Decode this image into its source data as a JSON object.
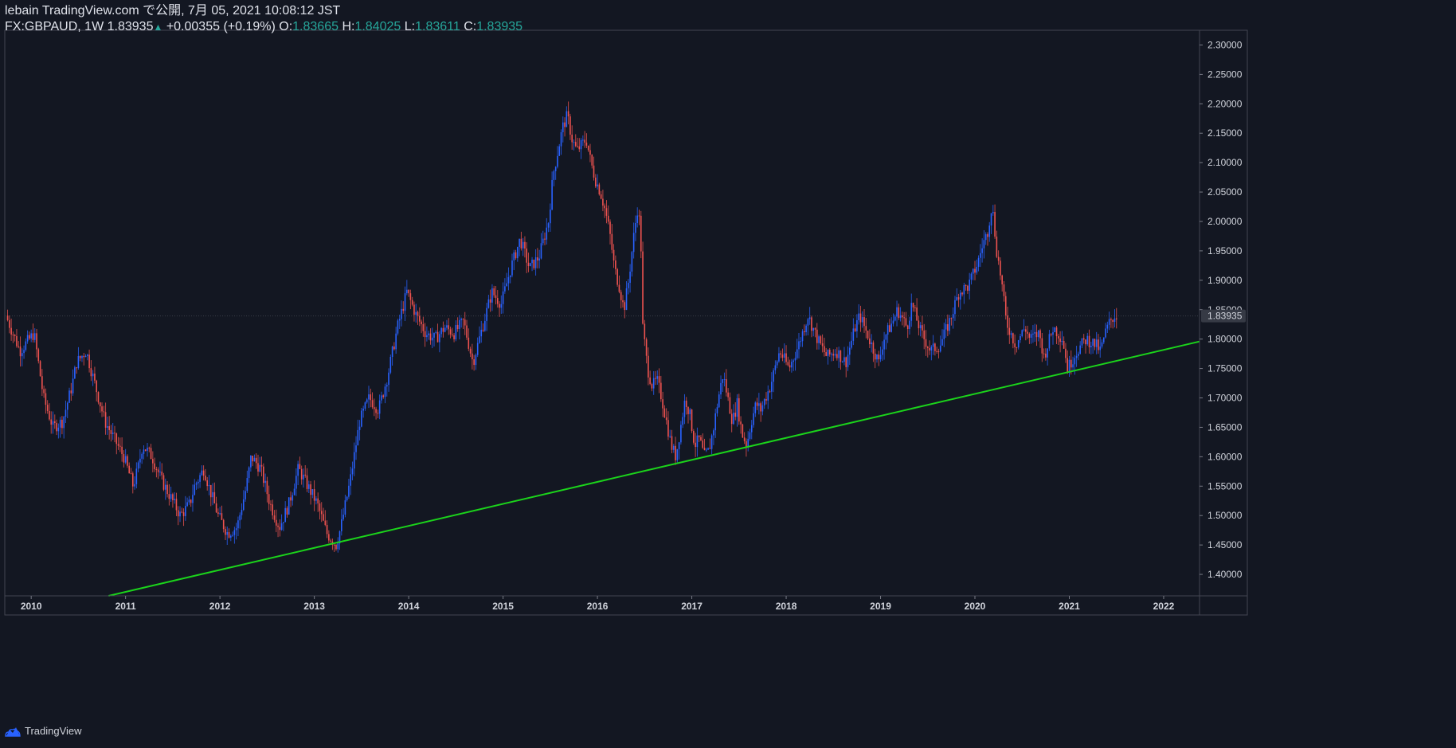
{
  "header": {
    "publish_line": "lebain TradingView.com で公開, 7月 05, 2021 10:08:12 JST",
    "symbol": "FX:GBPAUD, 1W",
    "last": "1.83935",
    "change_arrow": "▲",
    "change": "+0.00355 (+0.19%)",
    "o_label": "O:",
    "o_value": "1.83665",
    "h_label": "H:",
    "h_value": "1.84025",
    "l_label": "L:",
    "l_value": "1.83611",
    "c_label": "C:",
    "c_value": "1.83935"
  },
  "colors": {
    "background": "#131722",
    "up": "#2962ff",
    "down": "#ef5350",
    "trendline": "#1bd31b",
    "axis_text": "#d1d4dc",
    "border": "#787b86"
  },
  "footer": {
    "brand": "TradingView",
    "logo_icon": "tradingview-cloud-icon"
  },
  "chart_data": {
    "type": "candlestick",
    "symbol": "FX:GBPAUD",
    "interval": "1W",
    "y_axis": {
      "ylim": [
        1.3635,
        2.325
      ],
      "ticks": [
        "2.30000",
        "2.25000",
        "2.20000",
        "2.15000",
        "2.10000",
        "2.05000",
        "2.00000",
        "1.95000",
        "1.90000",
        "1.85000",
        "1.80000",
        "1.75000",
        "1.70000",
        "1.65000",
        "1.60000",
        "1.55000",
        "1.50000",
        "1.45000",
        "1.40000"
      ]
    },
    "x_axis": {
      "xlim": [
        2009.72,
        2022.38
      ],
      "ticks": [
        "2010",
        "2011",
        "2012",
        "2013",
        "2014",
        "2015",
        "2016",
        "2017",
        "2018",
        "2019",
        "2020",
        "2021",
        "2022"
      ]
    },
    "last_price_label": "1.83935",
    "last_price": 1.83935,
    "price_path": [
      [
        2009.75,
        1.84
      ],
      [
        2009.9,
        1.78
      ],
      [
        2010.05,
        1.81
      ],
      [
        2010.15,
        1.7
      ],
      [
        2010.25,
        1.65
      ],
      [
        2010.35,
        1.66
      ],
      [
        2010.45,
        1.72
      ],
      [
        2010.5,
        1.76
      ],
      [
        2010.6,
        1.78
      ],
      [
        2010.7,
        1.72
      ],
      [
        2010.8,
        1.66
      ],
      [
        2010.9,
        1.63
      ],
      [
        2011.0,
        1.6
      ],
      [
        2011.1,
        1.55
      ],
      [
        2011.15,
        1.58
      ],
      [
        2011.2,
        1.62
      ],
      [
        2011.3,
        1.6
      ],
      [
        2011.4,
        1.56
      ],
      [
        2011.5,
        1.53
      ],
      [
        2011.6,
        1.5
      ],
      [
        2011.7,
        1.52
      ],
      [
        2011.75,
        1.55
      ],
      [
        2011.85,
        1.58
      ],
      [
        2011.9,
        1.55
      ],
      [
        2012.0,
        1.5
      ],
      [
        2012.1,
        1.47
      ],
      [
        2012.2,
        1.48
      ],
      [
        2012.3,
        1.55
      ],
      [
        2012.35,
        1.6
      ],
      [
        2012.45,
        1.58
      ],
      [
        2012.55,
        1.52
      ],
      [
        2012.65,
        1.48
      ],
      [
        2012.75,
        1.52
      ],
      [
        2012.85,
        1.58
      ],
      [
        2012.95,
        1.55
      ],
      [
        2013.05,
        1.52
      ],
      [
        2013.15,
        1.47
      ],
      [
        2013.25,
        1.45
      ],
      [
        2013.3,
        1.48
      ],
      [
        2013.4,
        1.56
      ],
      [
        2013.5,
        1.66
      ],
      [
        2013.6,
        1.7
      ],
      [
        2013.7,
        1.68
      ],
      [
        2013.8,
        1.74
      ],
      [
        2013.9,
        1.82
      ],
      [
        2014.0,
        1.88
      ],
      [
        2014.1,
        1.84
      ],
      [
        2014.2,
        1.81
      ],
      [
        2014.3,
        1.8
      ],
      [
        2014.4,
        1.82
      ],
      [
        2014.5,
        1.81
      ],
      [
        2014.6,
        1.83
      ],
      [
        2014.7,
        1.76
      ],
      [
        2014.8,
        1.82
      ],
      [
        2014.9,
        1.88
      ],
      [
        2015.0,
        1.86
      ],
      [
        2015.1,
        1.92
      ],
      [
        2015.2,
        1.97
      ],
      [
        2015.3,
        1.92
      ],
      [
        2015.4,
        1.94
      ],
      [
        2015.5,
        2.0
      ],
      [
        2015.55,
        2.08
      ],
      [
        2015.6,
        2.12
      ],
      [
        2015.65,
        2.16
      ],
      [
        2015.7,
        2.18
      ],
      [
        2015.75,
        2.14
      ],
      [
        2015.8,
        2.12
      ],
      [
        2015.9,
        2.14
      ],
      [
        2015.95,
        2.1
      ],
      [
        2016.0,
        2.07
      ],
      [
        2016.05,
        2.05
      ],
      [
        2016.1,
        2.02
      ],
      [
        2016.15,
        1.98
      ],
      [
        2016.2,
        1.92
      ],
      [
        2016.25,
        1.89
      ],
      [
        2016.3,
        1.85
      ],
      [
        2016.35,
        1.9
      ],
      [
        2016.4,
        1.97
      ],
      [
        2016.45,
        2.03
      ],
      [
        2016.48,
        1.96
      ],
      [
        2016.5,
        1.82
      ],
      [
        2016.55,
        1.75
      ],
      [
        2016.6,
        1.72
      ],
      [
        2016.65,
        1.73
      ],
      [
        2016.7,
        1.7
      ],
      [
        2016.75,
        1.66
      ],
      [
        2016.8,
        1.62
      ],
      [
        2016.85,
        1.6
      ],
      [
        2016.9,
        1.65
      ],
      [
        2016.95,
        1.7
      ],
      [
        2017.0,
        1.67
      ],
      [
        2017.05,
        1.62
      ],
      [
        2017.1,
        1.63
      ],
      [
        2017.15,
        1.6
      ],
      [
        2017.2,
        1.61
      ],
      [
        2017.25,
        1.65
      ],
      [
        2017.3,
        1.7
      ],
      [
        2017.35,
        1.74
      ],
      [
        2017.4,
        1.7
      ],
      [
        2017.45,
        1.66
      ],
      [
        2017.5,
        1.69
      ],
      [
        2017.55,
        1.64
      ],
      [
        2017.6,
        1.62
      ],
      [
        2017.65,
        1.66
      ],
      [
        2017.7,
        1.69
      ],
      [
        2017.75,
        1.68
      ],
      [
        2017.85,
        1.72
      ],
      [
        2017.95,
        1.78
      ],
      [
        2018.05,
        1.75
      ],
      [
        2018.15,
        1.79
      ],
      [
        2018.25,
        1.84
      ],
      [
        2018.35,
        1.8
      ],
      [
        2018.45,
        1.77
      ],
      [
        2018.55,
        1.78
      ],
      [
        2018.65,
        1.76
      ],
      [
        2018.75,
        1.82
      ],
      [
        2018.8,
        1.84
      ],
      [
        2018.9,
        1.8
      ],
      [
        2019.0,
        1.76
      ],
      [
        2019.05,
        1.8
      ],
      [
        2019.15,
        1.83
      ],
      [
        2019.2,
        1.85
      ],
      [
        2019.3,
        1.82
      ],
      [
        2019.35,
        1.86
      ],
      [
        2019.45,
        1.81
      ],
      [
        2019.55,
        1.78
      ],
      [
        2019.65,
        1.79
      ],
      [
        2019.75,
        1.83
      ],
      [
        2019.85,
        1.88
      ],
      [
        2019.95,
        1.89
      ],
      [
        2020.05,
        1.93
      ],
      [
        2020.1,
        1.96
      ],
      [
        2020.15,
        1.98
      ],
      [
        2020.2,
        2.03
      ],
      [
        2020.25,
        1.95
      ],
      [
        2020.3,
        1.9
      ],
      [
        2020.35,
        1.83
      ],
      [
        2020.45,
        1.79
      ],
      [
        2020.55,
        1.82
      ],
      [
        2020.6,
        1.8
      ],
      [
        2020.7,
        1.81
      ],
      [
        2020.75,
        1.77
      ],
      [
        2020.85,
        1.82
      ],
      [
        2020.95,
        1.8
      ],
      [
        2021.0,
        1.75
      ],
      [
        2021.1,
        1.78
      ],
      [
        2021.2,
        1.8
      ],
      [
        2021.3,
        1.79
      ],
      [
        2021.35,
        1.78
      ],
      [
        2021.4,
        1.81
      ],
      [
        2021.45,
        1.83
      ],
      [
        2021.5,
        1.84
      ]
    ],
    "trendline": {
      "color": "#1bd31b",
      "points": [
        [
          2010.82,
          1.3635
        ],
        [
          2022.38,
          1.7959
        ]
      ]
    }
  }
}
